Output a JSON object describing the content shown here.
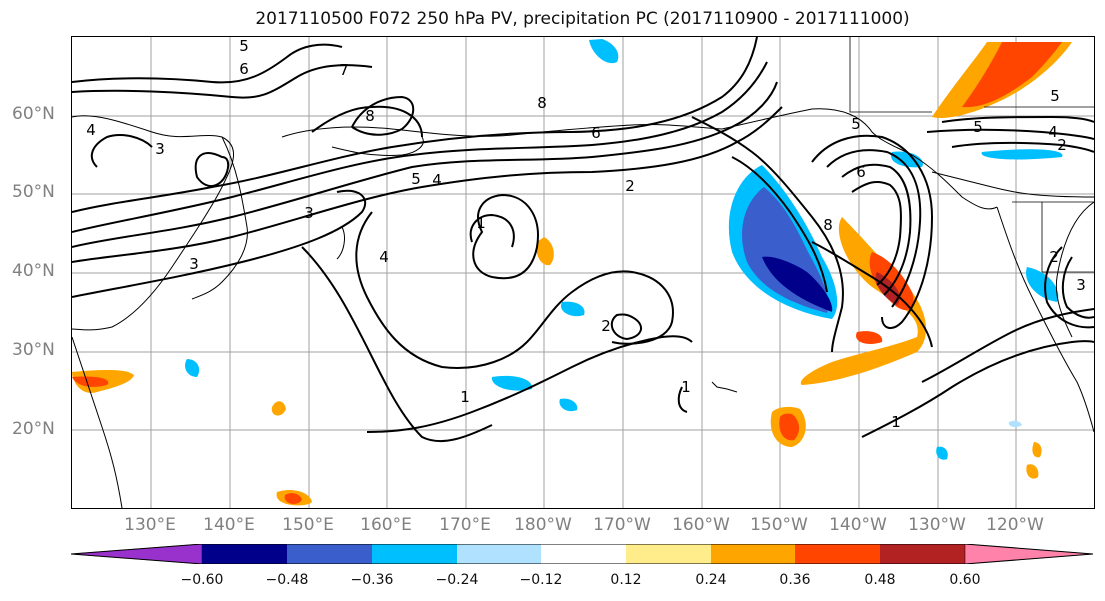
{
  "title": "2017110500 F072 250 hPa PV, precipitation PC (2017110900 - 2017111000)",
  "lat_labels": [
    "60°N",
    "50°N",
    "40°N",
    "30°N",
    "20°N"
  ],
  "lon_labels": [
    "130°E",
    "140°E",
    "150°E",
    "160°E",
    "170°E",
    "180°W",
    "170°W",
    "160°W",
    "150°W",
    "140°W",
    "130°W",
    "120°W"
  ],
  "colorbar": {
    "ticks": [
      "−0.60",
      "−0.48",
      "−0.36",
      "−0.24",
      "−0.12",
      "0.12",
      "0.24",
      "0.36",
      "0.48",
      "0.60"
    ],
    "colors": [
      "#9932CC",
      "#00008B",
      "#3A5FCD",
      "#00BFFF",
      "#B0E2FF",
      "#FFFFFF",
      "#FFEC8B",
      "#FFA500",
      "#FF4500",
      "#B22222",
      "#FF82AB"
    ]
  },
  "contour_labels": [
    "5",
    "6",
    "7",
    "8",
    "8",
    "6",
    "5",
    "4",
    "2",
    "3",
    "3",
    "4",
    "1",
    "4",
    "3",
    "2",
    "1",
    "1",
    "5",
    "8",
    "6",
    "5",
    "4",
    "2",
    "5",
    "3",
    "2",
    "1"
  ]
}
